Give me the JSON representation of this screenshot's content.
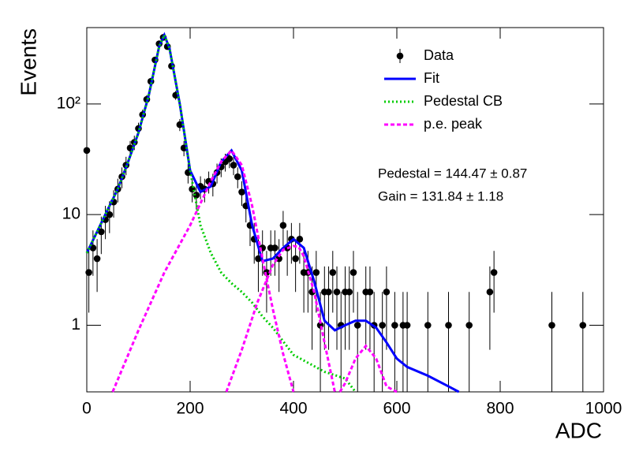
{
  "chart_data": {
    "type": "scatter",
    "x_label": "ADC",
    "y_label": "Events",
    "xlim": [
      0,
      1000
    ],
    "xticks": [
      0,
      200,
      400,
      600,
      800,
      1000
    ],
    "ylim": [
      0.25,
      490
    ],
    "yticks": [
      1,
      10,
      {
        "value": 100,
        "label": "10²"
      }
    ],
    "log_y": true,
    "legend": "upper right",
    "annotations": [
      "Pedestal = 144.47 ± 0.87",
      "Gain = 131.84 ± 1.18"
    ],
    "series": [
      {
        "name": "Data",
        "kind": "points",
        "color": "#000000",
        "x": [
          0,
          4,
          12,
          20,
          28,
          36,
          44,
          52,
          60,
          68,
          76,
          84,
          92,
          100,
          108,
          116,
          124,
          132,
          140,
          148,
          156,
          164,
          172,
          180,
          188,
          196,
          204,
          212,
          220,
          228,
          236,
          244,
          252,
          260,
          268,
          276,
          284,
          292,
          300,
          308,
          316,
          324,
          332,
          340,
          348,
          356,
          364,
          372,
          380,
          388,
          396,
          404,
          412,
          420,
          428,
          436,
          444,
          452,
          460,
          468,
          476,
          484,
          492,
          500,
          508,
          516,
          524,
          540,
          548,
          556,
          572,
          580,
          596,
          612,
          620,
          660,
          700,
          740,
          780,
          788,
          900,
          960
        ],
        "values": [
          38,
          3,
          5,
          4,
          7,
          9,
          10,
          13,
          17,
          22,
          28,
          40,
          45,
          60,
          80,
          110,
          160,
          250,
          350,
          400,
          330,
          220,
          120,
          65,
          40,
          24,
          17,
          15,
          18,
          17,
          20,
          19,
          24,
          27,
          30,
          32,
          28,
          22,
          16,
          12,
          8,
          6,
          4,
          5,
          3,
          5,
          5,
          4,
          8,
          5,
          6,
          4,
          6,
          3,
          3,
          2,
          3,
          1,
          2,
          2,
          3,
          2,
          1,
          2,
          2,
          3,
          1,
          2,
          2,
          1,
          1,
          2,
          1,
          1,
          1,
          1,
          1,
          1,
          2,
          3,
          1,
          1
        ],
        "errors": [
          6.2,
          1.7,
          2.2,
          2,
          2.6,
          3,
          3.2,
          3.6,
          4.1,
          4.7,
          5.3,
          6.3,
          6.7,
          7.7,
          8.9,
          10.5,
          12.6,
          15.8,
          18.7,
          20,
          18.2,
          14.8,
          11,
          8.1,
          6.3,
          4.9,
          4.1,
          3.9,
          4.2,
          4.1,
          4.5,
          4.4,
          4.9,
          5.2,
          5.5,
          5.7,
          5.3,
          4.7,
          4,
          3.5,
          2.8,
          2.4,
          2,
          2.2,
          1.7,
          2.2,
          2.2,
          2,
          2.8,
          2.2,
          2.4,
          2,
          2.4,
          1.7,
          1.7,
          1.4,
          1.7,
          1,
          1.4,
          1.4,
          1.7,
          1.4,
          1,
          1.4,
          1.4,
          1.7,
          1,
          1.4,
          1.4,
          1,
          1,
          1.4,
          1,
          1,
          1,
          1,
          1,
          1,
          1.4,
          1.7,
          1,
          1
        ]
      },
      {
        "name": "Fit",
        "kind": "line",
        "color": "#0000ff",
        "dash": "none",
        "x": [
          0,
          20,
          40,
          60,
          80,
          100,
          120,
          140,
          150,
          160,
          180,
          200,
          220,
          240,
          260,
          280,
          300,
          320,
          340,
          360,
          380,
          400,
          420,
          440,
          460,
          480,
          500,
          520,
          540,
          560,
          580,
          600,
          620,
          660,
          700,
          720
        ],
        "values": [
          4.5,
          7,
          11,
          17,
          30,
          55,
          120,
          330,
          420,
          320,
          100,
          25,
          16,
          18,
          30,
          38,
          25,
          8,
          3.8,
          4,
          5,
          6,
          5,
          2.5,
          1.1,
          0.9,
          1,
          1.1,
          1.1,
          0.95,
          0.7,
          0.5,
          0.42,
          0.35,
          0.28,
          0.25
        ]
      },
      {
        "name": "Pedestal CB",
        "kind": "line",
        "color": "#00cc00",
        "dash": "2 3",
        "x": [
          0,
          20,
          40,
          60,
          80,
          100,
          120,
          140,
          150,
          160,
          180,
          200,
          220,
          240,
          260,
          280,
          300,
          320,
          340,
          360,
          400,
          460,
          500,
          520
        ],
        "values": [
          4.5,
          7,
          11,
          17,
          30,
          55,
          120,
          330,
          420,
          320,
          100,
          25,
          8,
          4.5,
          3,
          2.4,
          2,
          1.6,
          1.2,
          0.95,
          0.54,
          0.38,
          0.33,
          0.25
        ]
      },
      {
        "name": "p.e. peak",
        "kind": "line",
        "color": "#ff00ff",
        "dash": "5 3",
        "x": [
          50,
          100,
          150,
          200,
          240,
          260,
          280,
          300,
          320,
          340,
          360,
          380,
          400,
          400,
          270,
          300,
          330,
          360,
          380,
          400,
          410,
          420,
          440,
          460,
          480,
          490,
          490,
          500,
          520,
          540,
          560,
          580,
          600
        ],
        "values": [
          0.25,
          0.9,
          3,
          8,
          20,
          30,
          38,
          28,
          12,
          4,
          1.4,
          0.55,
          0.25,
          null,
          0.25,
          0.6,
          1.6,
          3.5,
          4.8,
          5.2,
          5.1,
          4.2,
          2,
          0.7,
          0.25,
          null,
          0.25,
          0.3,
          0.5,
          0.65,
          0.5,
          0.28,
          0.25
        ]
      }
    ]
  }
}
